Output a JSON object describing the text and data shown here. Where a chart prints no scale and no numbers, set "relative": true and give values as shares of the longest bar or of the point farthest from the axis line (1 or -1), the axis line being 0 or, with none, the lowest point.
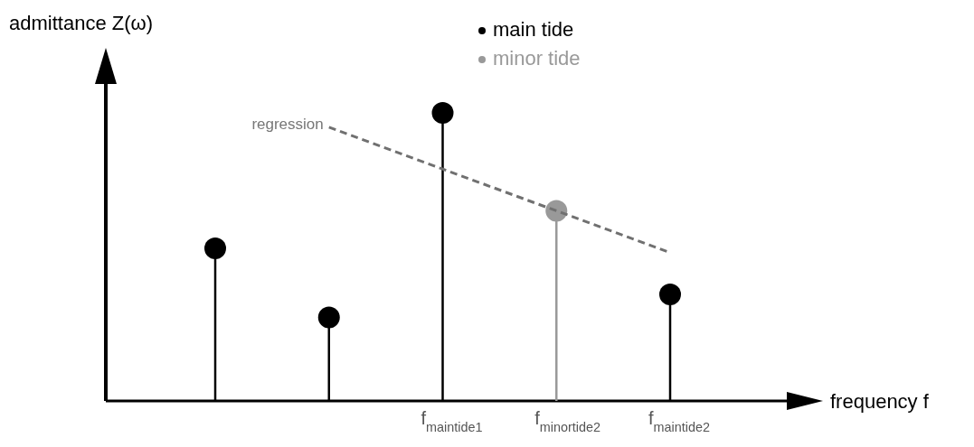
{
  "chart_data": {
    "type": "lollipop",
    "relative": true,
    "xlabel": "frequency f",
    "ylabel": "admittance Z(ω)",
    "categories": [
      null,
      null,
      "f$_{maintide1}$",
      "f$_{minortide2}$",
      "f$_{maintide2}$"
    ],
    "series": [
      {
        "name": "main tide",
        "color": "#000000",
        "values": [
          0.53,
          0.29,
          1,
          null,
          0.37
        ]
      },
      {
        "name": "minor tide",
        "color": "#999999",
        "values": [
          null,
          null,
          null,
          0.66,
          null
        ]
      },
      {
        "type": "line",
        "color": "#707070",
        "line_style": "dashed",
        "marker": "none",
        "values": [
          null,
          0.95,
          0.805,
          0.66,
          0.515
        ]
      }
    ],
    "annotations": [
      "regression"
    ],
    "legend": "top",
    "marker": "circle"
  }
}
